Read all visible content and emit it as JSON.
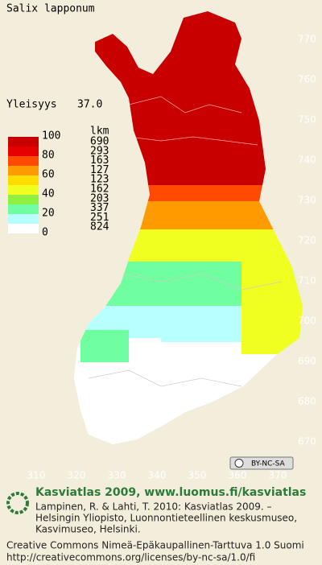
{
  "map": {
    "title": "Salix lapponum",
    "frequency_label": "Yleisyys",
    "frequency_value": "37.0",
    "legend": {
      "count_header": "lkm",
      "scale_labels": [
        "100",
        "80",
        "60",
        "40",
        "20",
        "0"
      ],
      "colors": [
        "#c80000",
        "#e60000",
        "#ff4a00",
        "#ff9a00",
        "#ffdd00",
        "#f0ff20",
        "#90f040",
        "#70ffa0",
        "#b8ffff",
        "#ffffff"
      ],
      "counts": [
        "690",
        "293",
        "163",
        "127",
        "123",
        "162",
        "203",
        "337",
        "251",
        "824"
      ]
    },
    "northing_ticks": [
      770,
      760,
      750,
      740,
      730,
      720,
      710,
      700,
      690,
      680,
      670
    ],
    "easting_ticks": [
      310,
      320,
      330,
      340,
      350,
      360,
      370
    ],
    "license_badge": "BY-NC-SA",
    "footer": {
      "heading": "Kasviatlas 2009, www.luomus.fi/kasviatlas",
      "citation": [
        "Lampinen, R. & Lahti, T. 2010: Kasviatlas 2009. –",
        "Helsingin Yliopisto, Luonnontieteellinen keskusmuseo,",
        "Kasvimuseo, Helsinki."
      ],
      "license": "Creative Commons Nimeä-Epäkaupallinen-Tarttuva 1.0 Suomi",
      "license_url": "http://creativecommons.org/licenses/by-nc-sa/1.0/fi"
    }
  }
}
